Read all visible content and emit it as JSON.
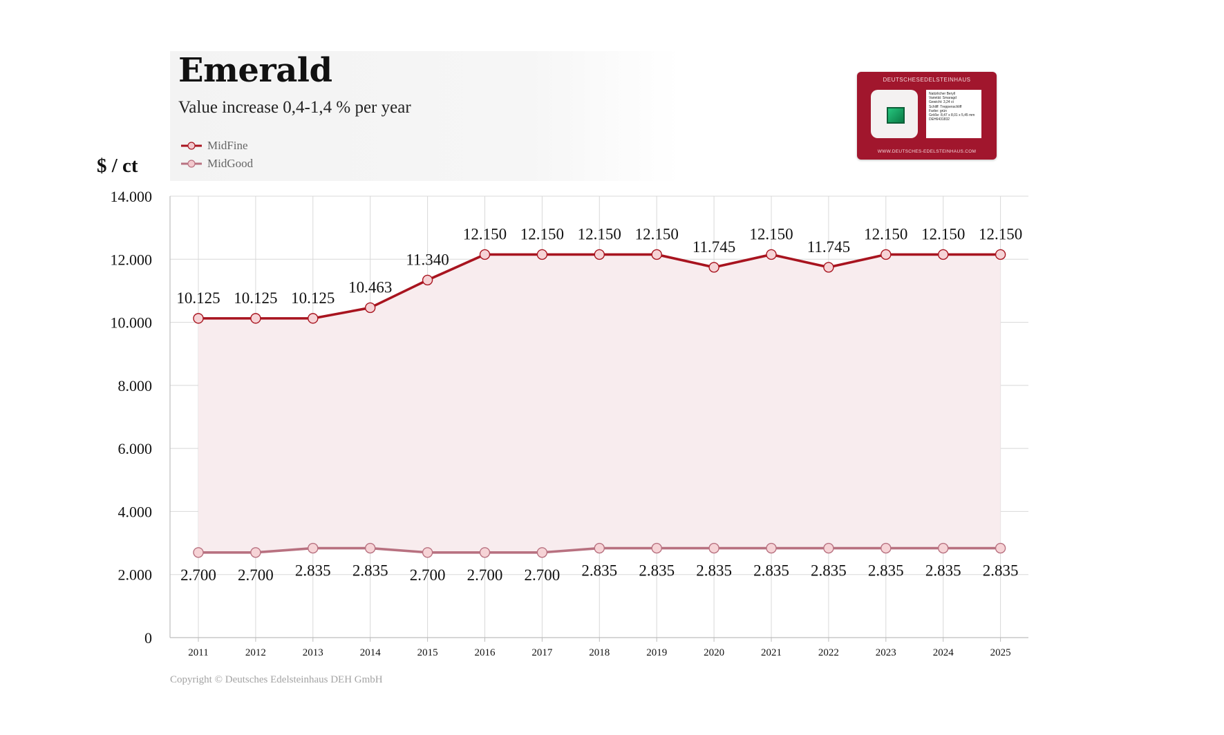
{
  "title": "Emerald",
  "subtitle": "Value increase 0,4-1,4 % per year",
  "y_unit": "$ / ct",
  "copyright": "Copyright © Deutsches Edelsteinhaus DEH GmbH",
  "certificate": {
    "brand": "DEUTSCHESEDELSTEINHAUS",
    "footer": "WWW.DEUTSCHES-EDELSTEINHAUS.COM",
    "lines": [
      "Natürlicher Beryll",
      "Varietät: Smaragd",
      "Gewicht: 3,24 ct",
      "Schliff: Treppenschliff",
      "Farbe: grün",
      "Größe: 8,47 x 8,01 x 5,45 mm",
      "DEH6431832"
    ]
  },
  "colors": {
    "midfine": "#a8141f",
    "midgood": "#b87180",
    "fill": "#f8ecee",
    "grid": "#d8d8d8"
  },
  "chart_data": {
    "type": "area",
    "categories": [
      "2011",
      "2012",
      "2013",
      "2014",
      "2015",
      "2016",
      "2017",
      "2018",
      "2019",
      "2020",
      "2021",
      "2022",
      "2023",
      "2024",
      "2025"
    ],
    "series": [
      {
        "name": "MidFine",
        "values": [
          10125,
          10125,
          10125,
          10463,
          11340,
          12150,
          12150,
          12150,
          12150,
          11745,
          12150,
          11745,
          12150,
          12150,
          12150
        ],
        "labels": [
          "10.125",
          "10.125",
          "10.125",
          "10.463",
          "11.340",
          "12.150",
          "12.150",
          "12.150",
          "12.150",
          "11.745",
          "12.150",
          "11.745",
          "12.150",
          "12.150",
          "12.150"
        ]
      },
      {
        "name": "MidGood",
        "values": [
          2700,
          2700,
          2835,
          2835,
          2700,
          2700,
          2700,
          2835,
          2835,
          2835,
          2835,
          2835,
          2835,
          2835,
          2835
        ],
        "labels": [
          "2.700",
          "2.700",
          "2.835",
          "2.835",
          "2.700",
          "2.700",
          "2.700",
          "2.835",
          "2.835",
          "2.835",
          "2.835",
          "2.835",
          "2.835",
          "2.835",
          "2.835"
        ]
      }
    ],
    "yticks": [
      "0",
      "2.000",
      "4.000",
      "6.000",
      "8.000",
      "10.000",
      "12.000",
      "14.000"
    ],
    "ylim": [
      0,
      14000
    ],
    "grid": true,
    "legend": "top-left"
  }
}
